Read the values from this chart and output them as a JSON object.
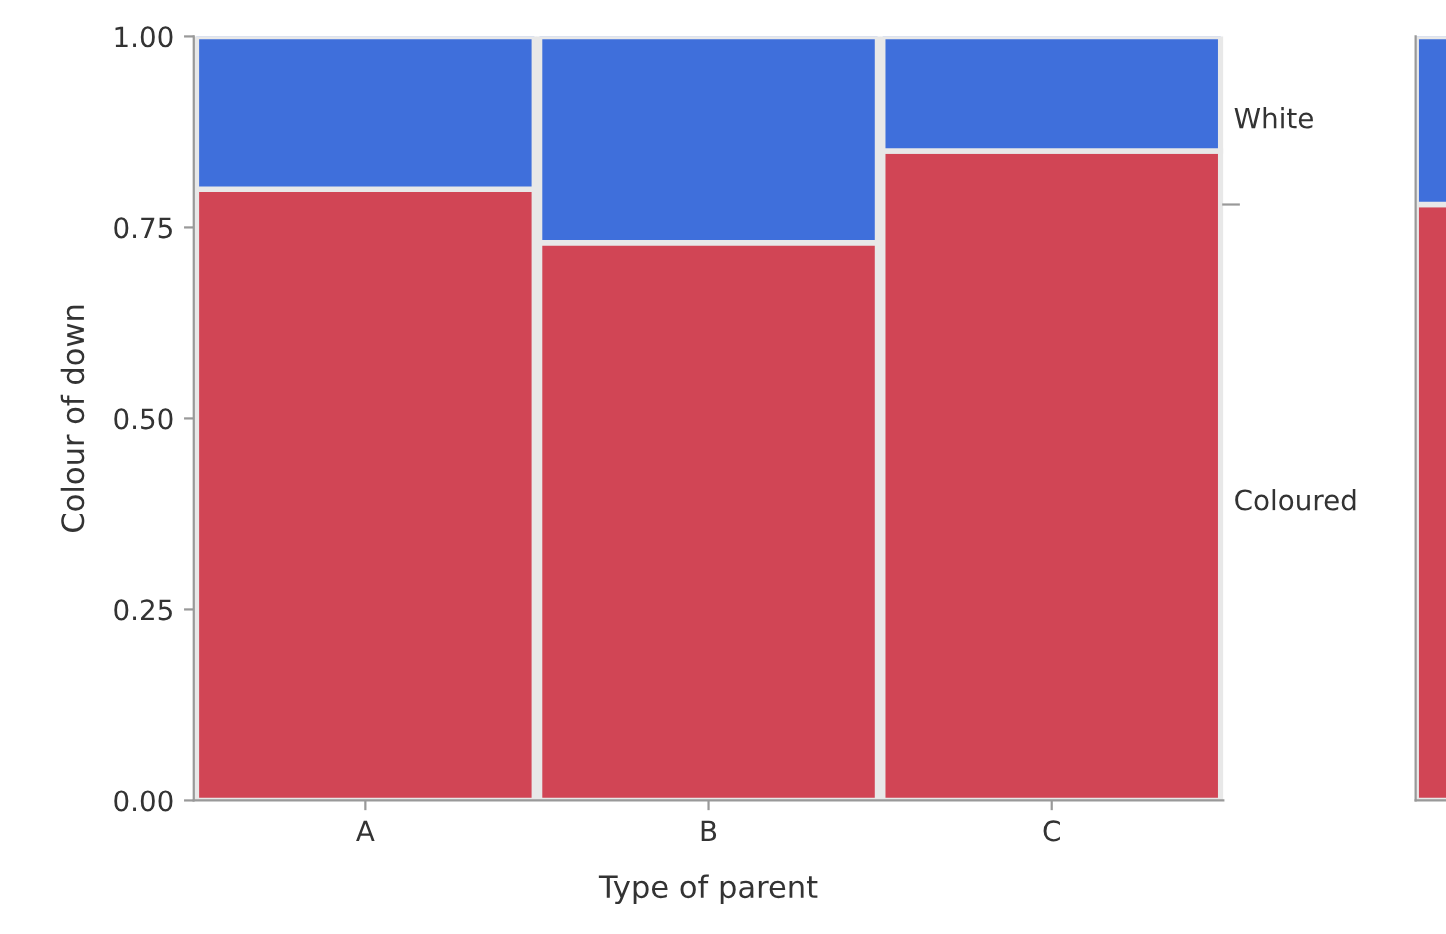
{
  "chart_data": [
    {
      "type": "bar",
      "stacked": true,
      "xlabel": "Type of parent",
      "ylabel": "Colour of down",
      "categories": [
        "A",
        "B",
        "C"
      ],
      "ylim": [
        0,
        1
      ],
      "yticks": [
        {
          "value": 0,
          "label": "0.00"
        },
        {
          "value": 0.25,
          "label": "0.25"
        },
        {
          "value": 0.5,
          "label": "0.50"
        },
        {
          "value": 0.75,
          "label": "0.75"
        },
        {
          "value": 1,
          "label": "1.00"
        }
      ],
      "grid": false,
      "series": [
        {
          "name": "Coloured",
          "color": "#d14555",
          "values": [
            0.8,
            0.73,
            0.85
          ]
        },
        {
          "name": "White",
          "color": "#3f6fdb",
          "values": [
            0.2,
            0.27,
            0.15
          ]
        }
      ]
    },
    {
      "type": "bar",
      "stacked": true,
      "categories": [
        null
      ],
      "ylim": [
        0,
        1
      ],
      "tick_labels": false,
      "series": [
        {
          "color": "#d14555",
          "values": [
            0.78
          ]
        },
        {
          "color": "#3f6fdb",
          "values": [
            0.22
          ]
        }
      ]
    }
  ]
}
